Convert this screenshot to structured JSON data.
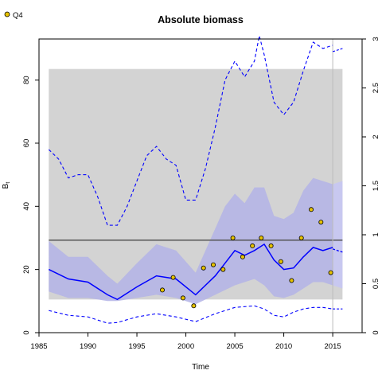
{
  "chart_data": {
    "type": "line",
    "title": "Absolute biomass",
    "xlabel": "Time",
    "ylabel": "B",
    "ylabel_sub": "t",
    "xlim": [
      1985,
      2018
    ],
    "ylim": [
      0,
      93
    ],
    "y2lim": [
      0,
      3.0
    ],
    "x_ticks": [
      1985,
      1990,
      1995,
      2000,
      2005,
      2010,
      2015
    ],
    "y_ticks": [
      0,
      20,
      40,
      60,
      80
    ],
    "y2_ticks": [
      0,
      0.5,
      1,
      1.5,
      2,
      2.5,
      3
    ],
    "y2_tick_labels": [
      "0",
      "0.5",
      "1",
      "1.5",
      "2",
      "2.5",
      "3"
    ],
    "grid": false,
    "legend": {
      "position": "top-left",
      "entries": [
        {
          "label": "Q4",
          "marker": "circle",
          "color": "#e6c200"
        }
      ]
    },
    "gray_region": {
      "x": [
        1986,
        2016
      ],
      "y": [
        10.5,
        83.5
      ],
      "color": "#d3d3d3"
    },
    "reference_line": {
      "y": 29.3,
      "color": "#555555"
    },
    "vertical_line": {
      "x": 2015,
      "color": "#bbbbbb"
    },
    "colors": {
      "line": "#0000ff",
      "band": "#b3b3e6",
      "band_extension": "#c8c8f0",
      "gray": "#d3d3d3",
      "point_fill": "#e6c200"
    },
    "series": [
      {
        "role": "median",
        "x": [
          1986,
          1988,
          1990,
          1992,
          1993,
          1995,
          1997,
          1999,
          2001,
          2003,
          2004,
          2005,
          2006,
          2007,
          2008,
          2009,
          2010,
          2011,
          2012,
          2013,
          2014,
          2015
        ],
        "values": [
          20,
          17,
          16,
          12,
          10.5,
          14.5,
          18,
          17,
          12,
          18,
          22,
          26,
          24.5,
          26,
          28,
          23,
          20,
          20.5,
          24,
          27,
          26,
          27
        ]
      },
      {
        "role": "ci-upper",
        "x": [
          1986,
          1988,
          1990,
          1992,
          1993,
          1995,
          1997,
          1999,
          2001,
          2002,
          2003,
          2004,
          2005,
          2006,
          2007,
          2008,
          2009,
          2010,
          2011,
          2012,
          2013,
          2014,
          2015
        ],
        "values": [
          29,
          24,
          24,
          18,
          15.5,
          22,
          28,
          26,
          19,
          26,
          33,
          40,
          44,
          41,
          46,
          46,
          37,
          36,
          38,
          45,
          49,
          48,
          47
        ]
      },
      {
        "role": "ci-lower",
        "x": [
          1986,
          1988,
          1990,
          1992,
          1993,
          1995,
          1997,
          1999,
          2001,
          2003,
          2005,
          2007,
          2008,
          2009,
          2010,
          2011,
          2012,
          2013,
          2014,
          2015
        ],
        "values": [
          13,
          11,
          11,
          10,
          10,
          11,
          12,
          11,
          9,
          12,
          15,
          17,
          15,
          11.5,
          11,
          12,
          14,
          16,
          16,
          15
        ]
      },
      {
        "role": "upper-dashed",
        "x": [
          1986,
          1987,
          1988,
          1989,
          1990,
          1991,
          1992,
          1993,
          1994,
          1995,
          1996,
          1997,
          1998,
          1999,
          2000,
          2001,
          2002,
          2003,
          2004,
          2005,
          2006,
          2007,
          2007.5,
          2008,
          2009,
          2010,
          2011,
          2012,
          2013,
          2014,
          2015
        ],
        "values": [
          58,
          55,
          49,
          50,
          50,
          43,
          34,
          34,
          40,
          48,
          56,
          59,
          55,
          53,
          42,
          42,
          52,
          65,
          80,
          86,
          81,
          86,
          94,
          88,
          73,
          69,
          73,
          83,
          92,
          90,
          91
        ]
      },
      {
        "role": "lower-dashed",
        "x": [
          1986,
          1988,
          1990,
          1992,
          1993,
          1995,
          1997,
          1999,
          2001,
          2003,
          2005,
          2007,
          2008,
          2009,
          2010,
          2011,
          2012,
          2013,
          2014,
          2015
        ],
        "values": [
          7,
          5.5,
          5,
          3,
          3.2,
          5,
          6,
          5,
          3.5,
          6,
          8,
          8.5,
          7.5,
          5.5,
          5,
          6.5,
          7.5,
          8,
          8,
          7.5
        ]
      },
      {
        "role": "forecast-median",
        "x": [
          2015,
          2016
        ],
        "values": [
          26.5,
          25.5
        ]
      },
      {
        "role": "forecast-upper-dashed",
        "x": [
          2015,
          2016
        ],
        "values": [
          89,
          90
        ]
      },
      {
        "role": "forecast-lower-dashed",
        "x": [
          2015,
          2016
        ],
        "values": [
          7.5,
          7.5
        ]
      },
      {
        "role": "forecast-band",
        "x": [
          2015,
          2016
        ],
        "upper": [
          47,
          48
        ],
        "lower": [
          15,
          14
        ]
      },
      {
        "name": "Q4",
        "role": "observations",
        "x": [
          1997.6,
          1998.7,
          1999.7,
          2000.8,
          2001.8,
          2002.8,
          2003.8,
          2004.8,
          2005.8,
          2006.8,
          2007.7,
          2008.7,
          2009.7,
          2010.8,
          2011.8,
          2012.8,
          2013.8,
          2014.8
        ],
        "values": [
          13.5,
          17.5,
          11,
          8.5,
          20.5,
          21.5,
          20,
          30,
          24,
          27.5,
          30,
          27.5,
          22.5,
          16.5,
          30,
          39,
          35,
          19
        ]
      }
    ]
  }
}
